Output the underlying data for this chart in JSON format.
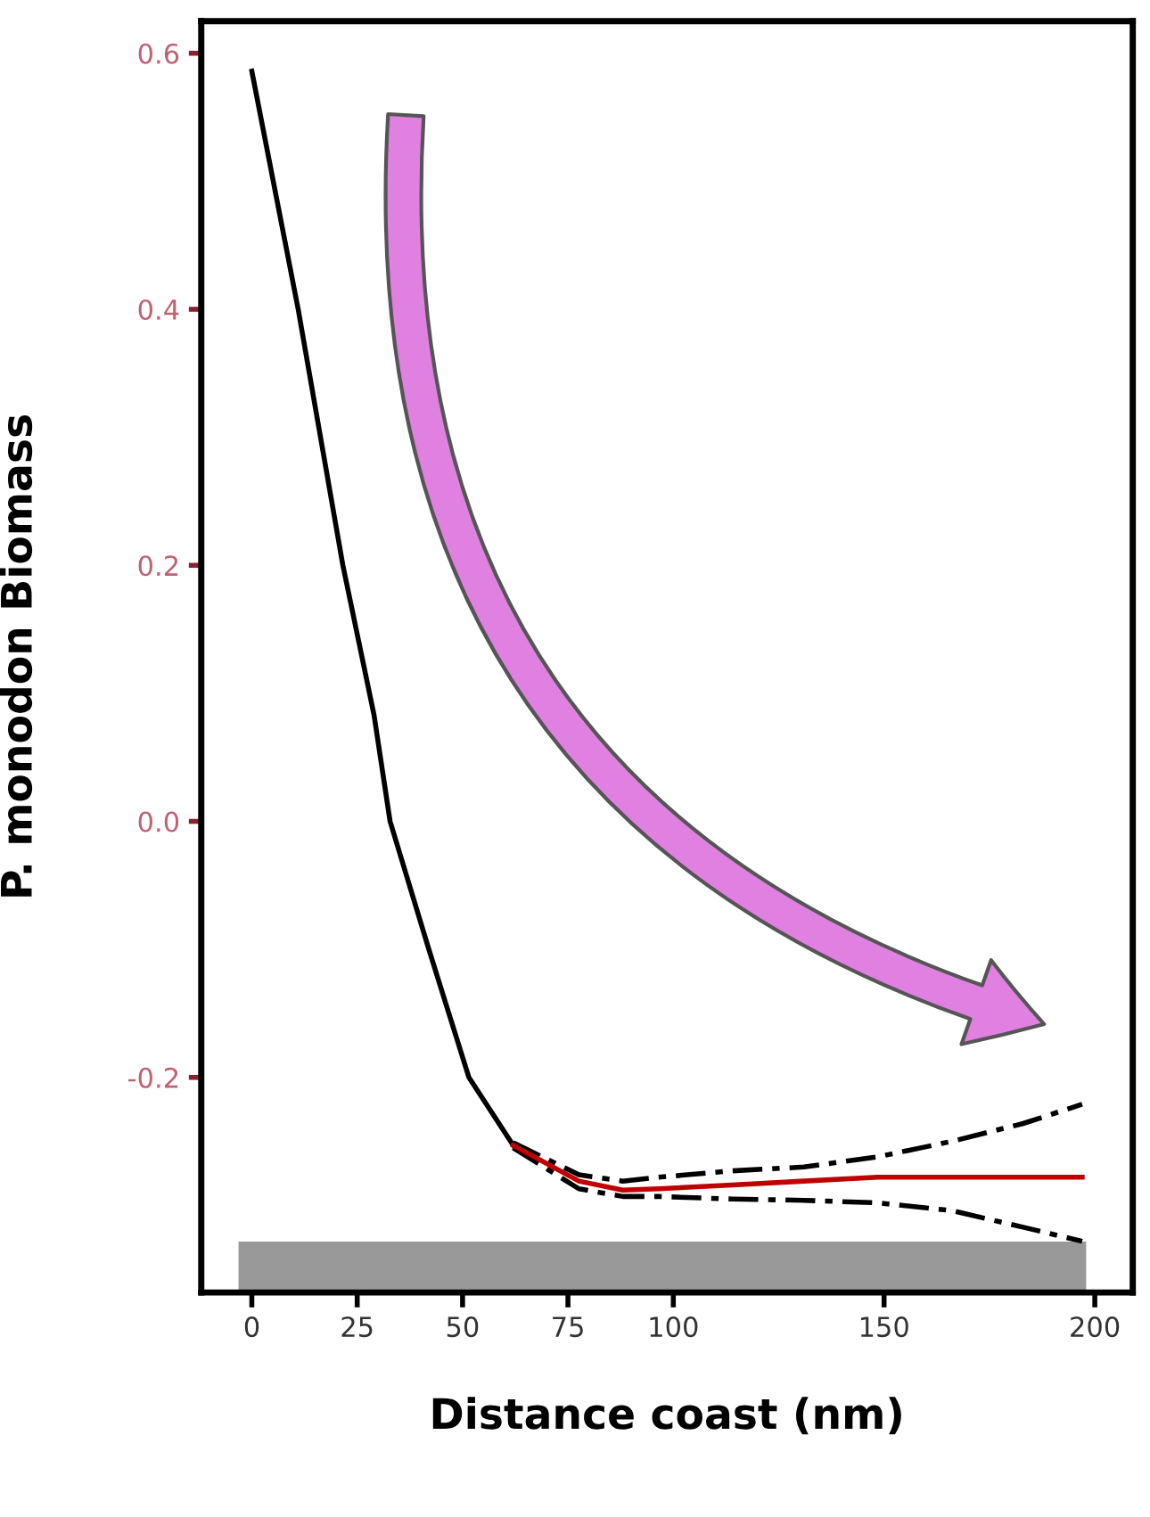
{
  "chart_data": {
    "type": "line",
    "xlabel": "Distance coast (nm)",
    "ylabel": "P. monodon Biomass",
    "xlim": [
      -12,
      209
    ],
    "ylim": [
      -0.368,
      0.625
    ],
    "xticks": [
      0,
      25,
      50,
      75,
      100,
      150,
      200
    ],
    "yticks": [
      {
        "value": 0.6,
        "label": "0.6"
      },
      {
        "value": 0.4,
        "label": "0.4"
      },
      {
        "value": 0.2,
        "label": "0.2"
      },
      {
        "value": 0.0,
        "label": "0.0"
      },
      {
        "value": -0.2,
        "label": "-0.2"
      }
    ],
    "grid": false,
    "series": [
      {
        "color": "#000000",
        "x": [
          0,
          11,
          21.6,
          29,
          32.8,
          42,
          51.5,
          62
        ],
        "values": [
          0.586,
          0.4,
          0.2,
          0.083,
          0.0,
          -0.1,
          -0.2,
          -0.253
        ]
      },
      {
        "color": "#000000",
        "line_style": "dashed",
        "x": [
          62,
          77.6,
          88,
          96.5,
          114,
          131,
          148.5,
          166,
          183,
          197
        ],
        "values": [
          -0.255,
          -0.287,
          -0.293,
          -0.293,
          -0.295,
          -0.296,
          -0.298,
          -0.304,
          -0.317,
          -0.328
        ]
      },
      {
        "color": "#000000",
        "line_style": "dashed",
        "x": [
          62,
          77.6,
          88,
          96.5,
          114,
          131,
          148.5,
          166,
          183,
          197
        ],
        "values": [
          -0.251,
          -0.276,
          -0.281,
          -0.278,
          -0.273,
          -0.27,
          -0.262,
          -0.25,
          -0.236,
          -0.221
        ]
      },
      {
        "color": "#c00000",
        "x": [
          62,
          77.6,
          88,
          96.5,
          114,
          131,
          148.5,
          166,
          183,
          197
        ],
        "values": [
          -0.253,
          -0.281,
          -0.288,
          -0.287,
          -0.284,
          -0.281,
          -0.278,
          -0.278,
          -0.278,
          -0.278
        ]
      }
    ]
  }
}
